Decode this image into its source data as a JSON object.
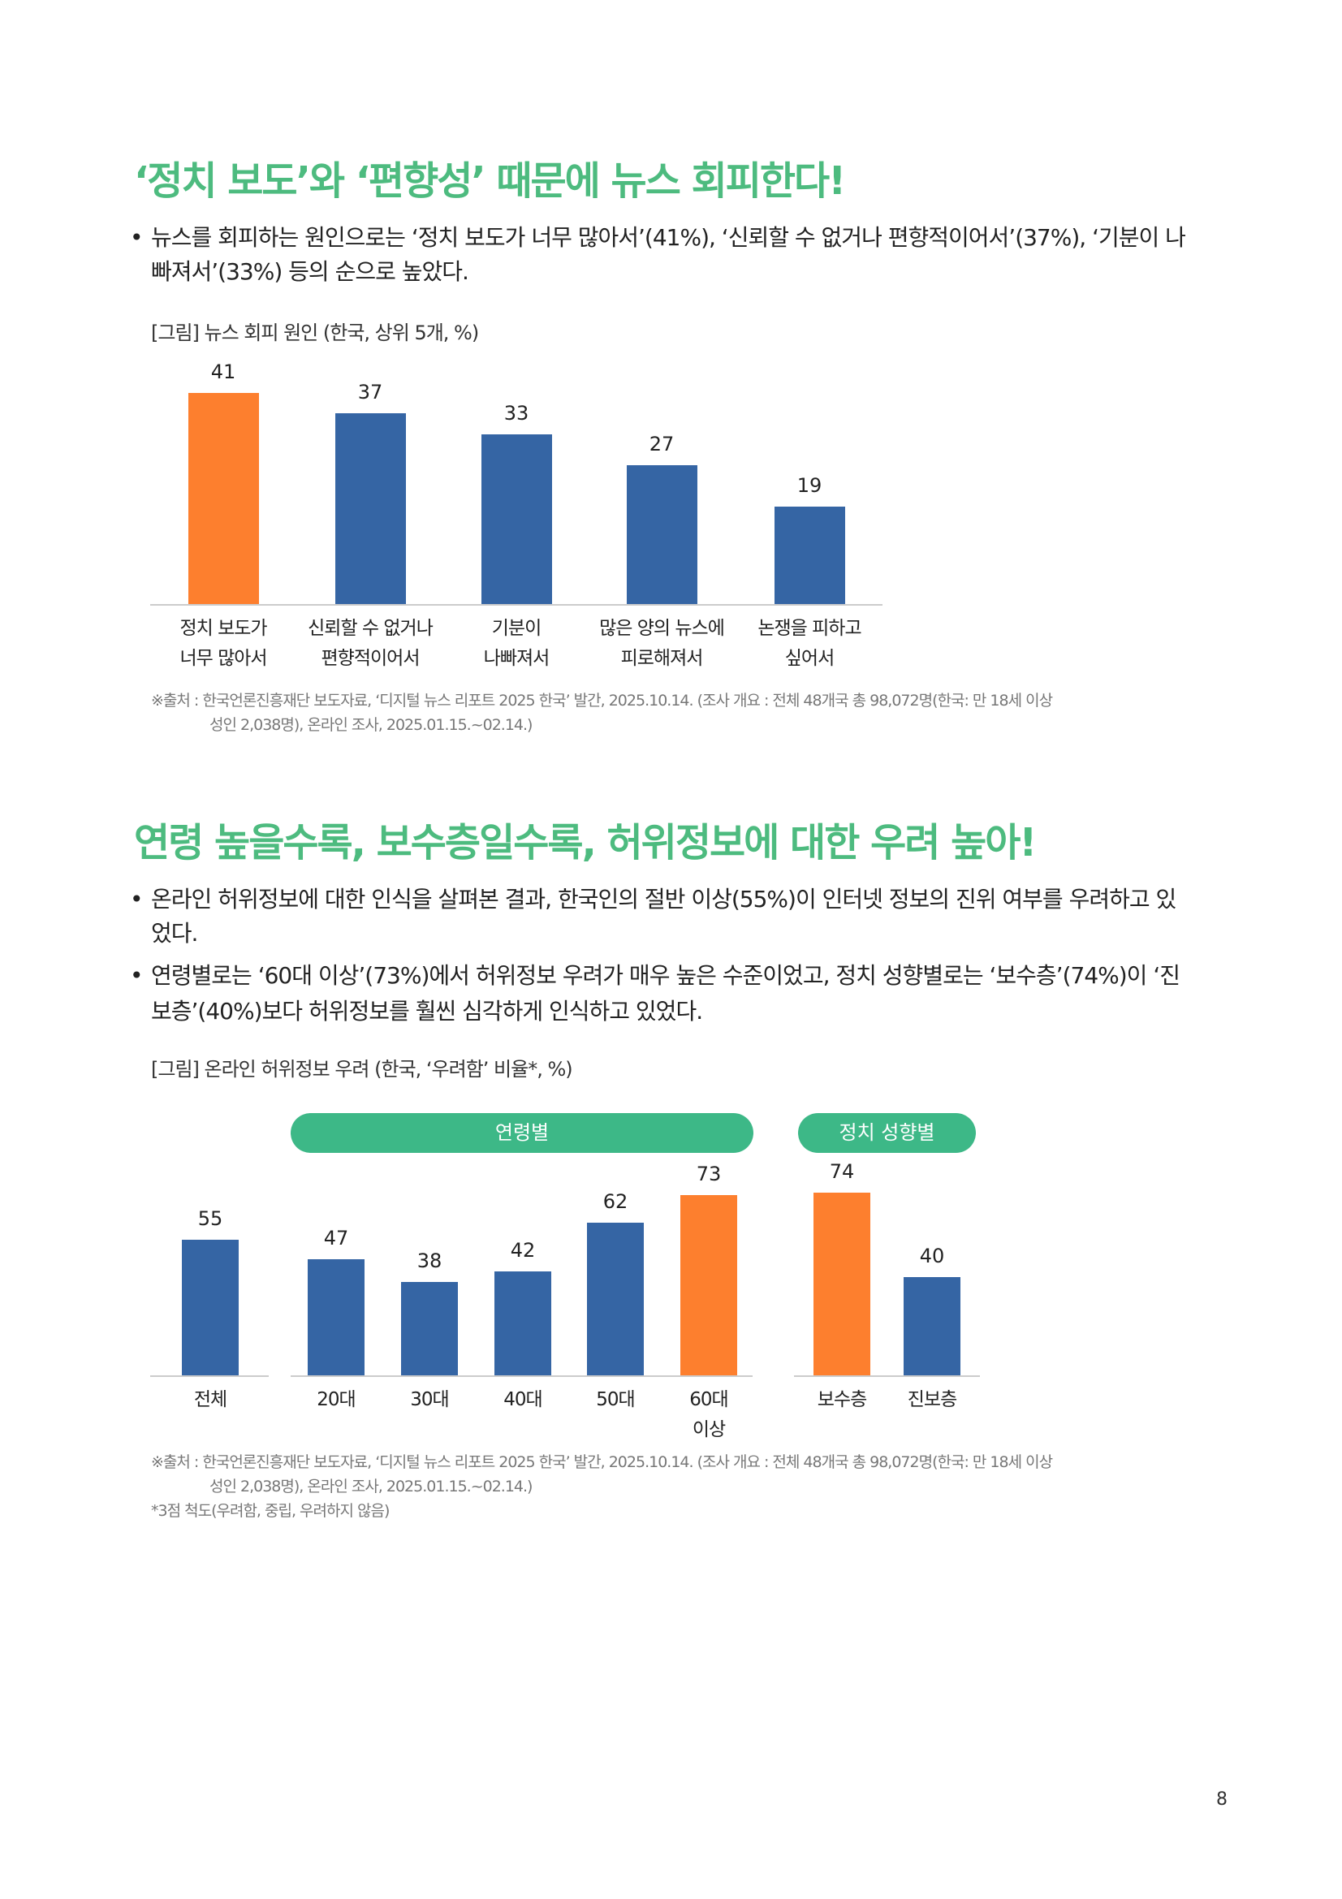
{
  "section1": {
    "title": "‘정치 보도’와 ‘편향성’ 때문에 뉴스 회피한다!",
    "bullets": [
      "뉴스를 회피하는 원인으로는 ‘정치 보도가 너무 많아서’(41%), ‘신뢰할 수 없거나 편향적이어서’(37%), ‘기분이 나",
      "빠져서’(33%) 등의 순으로 높았다."
    ],
    "caption": "[그림] 뉴스 회피 원인 (한국, 상위 5개, %)",
    "source": [
      "※출처 : 한국언론진흥재단 보도자료, ‘디지털 뉴스 리포트 2025 한국’ 발간, 2025.10.14. (조사 개요 : 전체 48개국 총 98,072명(한국: 만 18세 이상",
      "성인 2,038명), 온라인 조사, 2025.01.15.~02.14.)"
    ]
  },
  "section2": {
    "title": "연령 높을수록, 보수층일수록, 허위정보에 대한 우려 높아!",
    "bullets": [
      "온라인 허위정보에 대한 인식을 살펴본 결과, 한국인의 절반 이상(55%)이 인터넷 정보의 진위 여부를 우려하고 있",
      "었다.",
      "연령별로는 ‘60대 이상’(73%)에서 허위정보 우려가 매우 높은 수준이었고, 정치 성향별로는 ‘보수층’(74%)이 ‘진",
      "보층’(40%)보다 허위정보를 훨씬 심각하게 인식하고 있었다."
    ],
    "caption": "[그림] 온라인 허위정보 우려 (한국, ‘우려함’ 비율*, %)",
    "source": [
      "※출처 : 한국언론진흥재단 보도자료, ‘디지털 뉴스 리포트 2025 한국’ 발간, 2025.10.14. (조사 개요 : 전체 48개국 총 98,072명(한국: 만 18세 이상",
      "성인 2,038명), 온라인 조사, 2025.01.15.~02.14.)",
      "*3점 척도(우려함, 중립, 우려하지 않음)"
    ]
  },
  "page_number": "8",
  "colors": {
    "blue": "#3565a4",
    "orange": "#fd7f2e",
    "green": "#3db887"
  },
  "chart_data": [
    {
      "type": "bar",
      "title": "[그림] 뉴스 회피 원인 (한국, 상위 5개, %)",
      "categories": [
        "정치 보도가\n너무 많아서",
        "신뢰할 수 없거나\n편향적이어서",
        "기분이\n나빠져서",
        "많은 양의 뉴스에\n피로해져서",
        "논쟁을 피하고\n싶어서"
      ],
      "values": [
        41,
        37,
        33,
        27,
        19
      ],
      "highlight": [
        true,
        false,
        false,
        false,
        false
      ],
      "ylim": [
        0,
        41
      ]
    },
    {
      "type": "bar",
      "title": "[그림] 온라인 허위정보 우려 (한국, ‘우려함’ 비율*, %)",
      "groups": [
        "연령별",
        "정치 성향별"
      ],
      "categories": [
        "전체",
        "20대",
        "30대",
        "40대",
        "50대",
        "60대\n이상",
        "보수층",
        "진보층"
      ],
      "values": [
        55,
        47,
        38,
        42,
        62,
        73,
        74,
        40
      ],
      "highlight": [
        false,
        false,
        false,
        false,
        false,
        true,
        true,
        false
      ],
      "ylim": [
        0,
        74
      ]
    }
  ]
}
